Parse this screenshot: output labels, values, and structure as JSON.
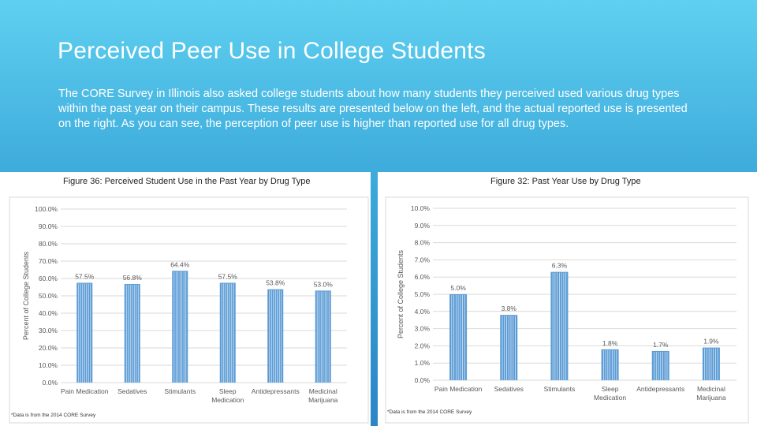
{
  "slide": {
    "title": "Perceived Peer Use in College Students",
    "body": "The CORE Survey in Illinois also asked college students about how many students they perceived used various drug types within the past year on their campus. These results are presented below on the left, and the actual reported use is presented on the right. As you can see, the perception of peer use is higher than reported use for all drug types."
  },
  "colors": {
    "bar": "#5b9bd5",
    "bar_stripe": "#ffffff",
    "grid": "#d9d9d9",
    "text": "#595959"
  },
  "chart_data": [
    {
      "type": "bar",
      "title": "Figure 36: Perceived Student Use in the Past Year by Drug Type",
      "ylabel": "Percent of College Students",
      "xlabel": "",
      "ylim": [
        0,
        100
      ],
      "yticks": [
        "0.0%",
        "10.0%",
        "20.0%",
        "30.0%",
        "40.0%",
        "50.0%",
        "60.0%",
        "70.0%",
        "80.0%",
        "90.0%",
        "100.0%"
      ],
      "categories": [
        [
          "Pain Medication"
        ],
        [
          "Sedatives"
        ],
        [
          "Stimulants"
        ],
        [
          "Sleep",
          "Medication"
        ],
        [
          "Antidepressants"
        ],
        [
          "Medicinal",
          "Marijuana"
        ]
      ],
      "values": [
        57.5,
        56.8,
        64.4,
        57.5,
        53.8,
        53.0
      ],
      "labels": [
        "57.5%",
        "56.8%",
        "64.4%",
        "57.5%",
        "53.8%",
        "53.0%"
      ],
      "footnote": "*Data is from the 2014 CORE Survey"
    },
    {
      "type": "bar",
      "title": "Figure 32: Past Year Use by Drug Type",
      "ylabel": "Percent of College Students",
      "xlabel": "",
      "ylim": [
        0,
        10
      ],
      "yticks": [
        "0.0%",
        "1.0%",
        "2.0%",
        "3.0%",
        "4.0%",
        "5.0%",
        "6.0%",
        "7.0%",
        "8.0%",
        "9.0%",
        "10.0%"
      ],
      "categories": [
        [
          "Pain Medication"
        ],
        [
          "Sedatives"
        ],
        [
          "Stimulants"
        ],
        [
          "Sleep",
          "Medication"
        ],
        [
          "Antidepressants"
        ],
        [
          "Medicinal",
          "Marijuana"
        ]
      ],
      "values": [
        5.0,
        3.8,
        6.3,
        1.8,
        1.7,
        1.9
      ],
      "labels": [
        "5.0%",
        "3.8%",
        "6.3%",
        "1.8%",
        "1.7%",
        "1.9%"
      ],
      "footnote": "*Data is from the 2014 CORE Survey"
    }
  ]
}
